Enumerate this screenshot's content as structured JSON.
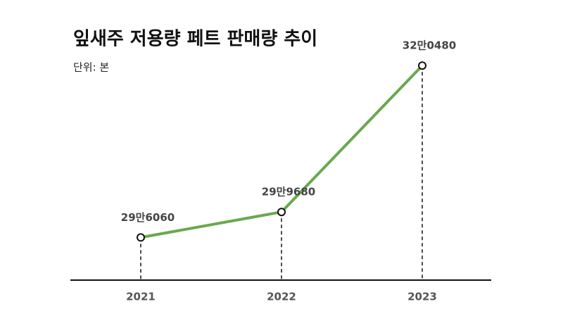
{
  "chart_data": {
    "type": "line",
    "title": "잎새주 저용량 페트 판매량 추이",
    "subtitle": "단위: 본",
    "categories": [
      "2021",
      "2022",
      "2023"
    ],
    "values": [
      296060,
      299680,
      320480
    ],
    "value_labels": [
      "29만6060",
      "29만9680",
      "32만0480"
    ],
    "color": "#6aa84f",
    "ylim": [
      290000,
      325000
    ]
  }
}
